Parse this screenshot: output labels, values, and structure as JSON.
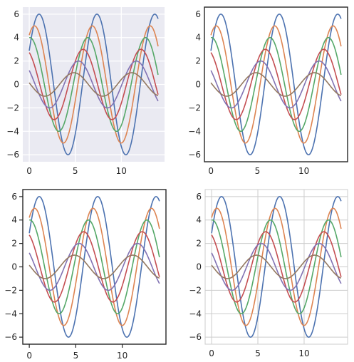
{
  "chart_data": [
    {
      "type": "line",
      "style": "darkgrid",
      "xlim": [
        -0.7,
        14.7
      ],
      "ylim": [
        -6.6,
        6.6
      ],
      "xticks": [
        0,
        5,
        10
      ],
      "yticks": [
        -6,
        -4,
        -2,
        0,
        2,
        4,
        6
      ],
      "xtick_labels": [
        "0",
        "5",
        "10"
      ],
      "ytick_labels": [
        "−6",
        "−4",
        "−2",
        "0",
        "2",
        "4",
        "6"
      ],
      "grid": true,
      "frame": false,
      "ticks_outside": false
    },
    {
      "type": "line",
      "style": "white",
      "xlim": [
        -0.7,
        14.7
      ],
      "ylim": [
        -6.6,
        6.6
      ],
      "xticks": [
        0,
        5,
        10
      ],
      "yticks": [
        -6,
        -4,
        -2,
        0,
        2,
        4,
        6
      ],
      "xtick_labels": [
        "0",
        "5",
        "10"
      ],
      "ytick_labels": [
        "−6",
        "−4",
        "−2",
        "0",
        "2",
        "4",
        "6"
      ],
      "grid": false,
      "frame": true,
      "ticks_outside": false
    },
    {
      "type": "line",
      "style": "ticks",
      "xlim": [
        -0.7,
        14.7
      ],
      "ylim": [
        -6.6,
        6.6
      ],
      "xticks": [
        0,
        5,
        10
      ],
      "yticks": [
        -6,
        -4,
        -2,
        0,
        2,
        4,
        6
      ],
      "xtick_labels": [
        "0",
        "5",
        "10"
      ],
      "ytick_labels": [
        "−6",
        "−4",
        "−2",
        "0",
        "2",
        "4",
        "6"
      ],
      "grid": false,
      "frame": true,
      "ticks_outside": true
    },
    {
      "type": "line",
      "style": "whitegrid",
      "xlim": [
        -0.7,
        14.7
      ],
      "ylim": [
        -6.6,
        6.6
      ],
      "xticks": [
        0,
        5,
        10
      ],
      "yticks": [
        -6,
        -4,
        -2,
        0,
        2,
        4,
        6
      ],
      "xtick_labels": [
        "0",
        "5",
        "10"
      ],
      "ytick_labels": [
        "−6",
        "−4",
        "−2",
        "0",
        "2",
        "4",
        "6"
      ],
      "grid": true,
      "frame": true,
      "ticks_outside": false
    }
  ],
  "series": [
    {
      "color": "#4c72b0",
      "function": "y = 6 * sin(x + 0.5)",
      "x_range": [
        0,
        14
      ]
    },
    {
      "color": "#dd8452",
      "function": "y = 5 * sin(x + 1.0)",
      "x_range": [
        0,
        14
      ]
    },
    {
      "color": "#55a868",
      "function": "y = 4 * sin(x + 1.5)",
      "x_range": [
        0,
        14
      ]
    },
    {
      "color": "#c44e52",
      "function": "y = 3 * sin(x + 2.0)",
      "x_range": [
        0,
        14
      ]
    },
    {
      "color": "#8172b3",
      "function": "y = 2 * sin(x + 2.5)",
      "x_range": [
        0,
        14
      ]
    },
    {
      "color": "#937860",
      "function": "y = 1 * sin(x + 3.0)",
      "x_range": [
        0,
        14
      ]
    }
  ],
  "series_params": [
    {
      "amplitude": 6,
      "phase": 0.5
    },
    {
      "amplitude": 5,
      "phase": 1.0
    },
    {
      "amplitude": 4,
      "phase": 1.5
    },
    {
      "amplitude": 3,
      "phase": 2.0
    },
    {
      "amplitude": 2,
      "phase": 2.5
    },
    {
      "amplitude": 1,
      "phase": 3.0
    }
  ],
  "colors": {
    "darkgrid_background": "#eaeaf2",
    "grid_on_dark": "#ffffff",
    "grid_on_white": "#cccccc",
    "frame": "#262626",
    "frame_light": "#cccccc",
    "tick_text": "#262626"
  }
}
